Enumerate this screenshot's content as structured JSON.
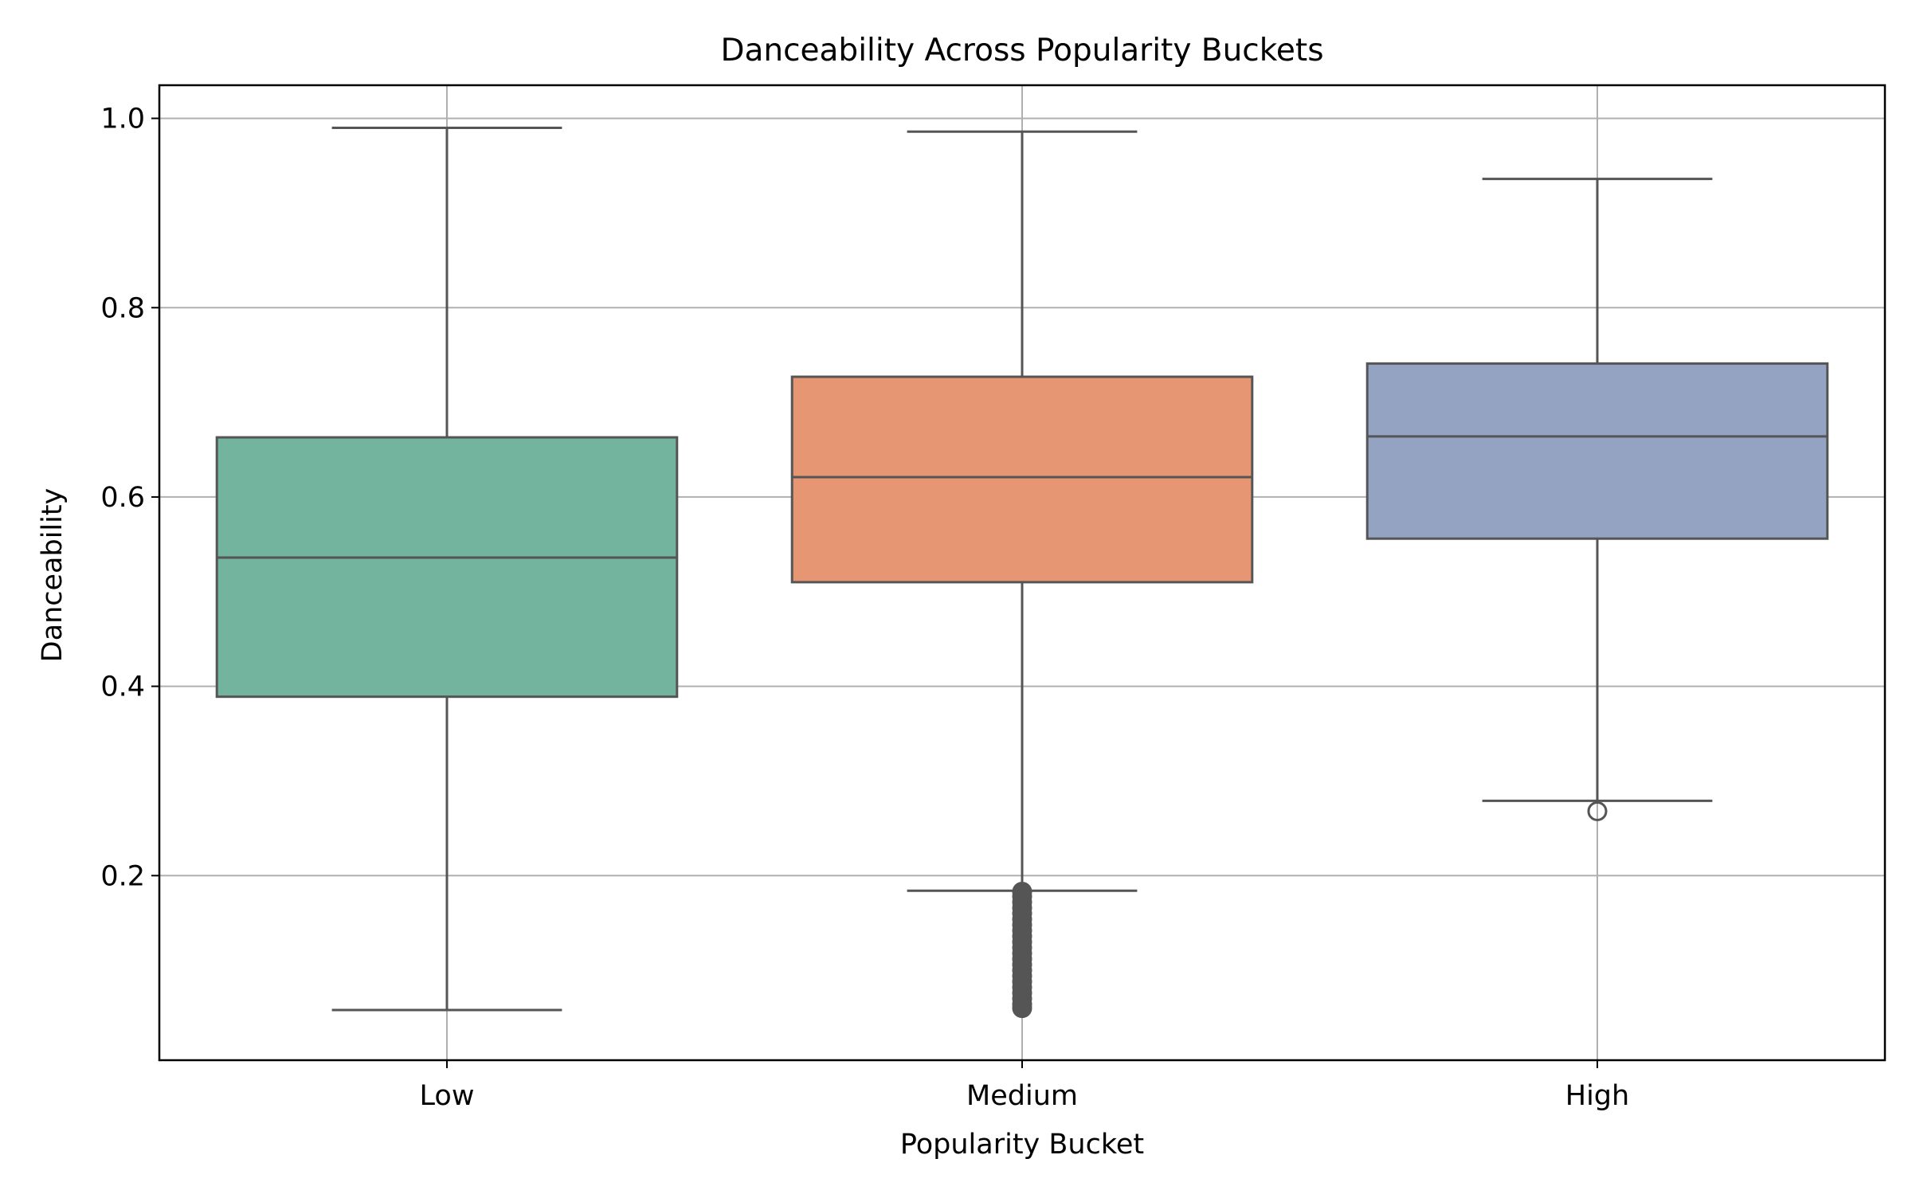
{
  "chart_data": {
    "type": "box",
    "title": "Danceability Across Popularity Buckets",
    "xlabel": "Popularity Bucket",
    "ylabel": "Danceability",
    "ylim": [
      0.005,
      1.035
    ],
    "yticks": [
      0.2,
      0.4,
      0.6,
      0.8,
      1.0
    ],
    "ytick_labels": [
      "0.2",
      "0.4",
      "0.6",
      "0.8",
      "1.0"
    ],
    "categories": [
      "Low",
      "Medium",
      "High"
    ],
    "grid": true,
    "series": [
      {
        "category": "Low",
        "color": "#73b49f",
        "whisker_low": 0.058,
        "q1": 0.389,
        "median": 0.536,
        "q3": 0.663,
        "whisker_high": 0.99,
        "outliers": []
      },
      {
        "category": "Medium",
        "color": "#e79674",
        "whisker_low": 0.184,
        "q1": 0.51,
        "median": 0.621,
        "q3": 0.727,
        "whisker_high": 0.986,
        "outliers": [
          0.183,
          0.178,
          0.172,
          0.166,
          0.16,
          0.154,
          0.148,
          0.142,
          0.136,
          0.13,
          0.124,
          0.118,
          0.112,
          0.106,
          0.1,
          0.094,
          0.088,
          0.082,
          0.076,
          0.07,
          0.064,
          0.06
        ]
      },
      {
        "category": "High",
        "color": "#94a3c2",
        "whisker_low": 0.279,
        "q1": 0.556,
        "median": 0.664,
        "q3": 0.741,
        "whisker_high": 0.936,
        "outliers": [
          0.268
        ]
      }
    ],
    "colors": {
      "line": "#555555",
      "grid": "#b0b0b0",
      "axes": "#000000"
    }
  }
}
